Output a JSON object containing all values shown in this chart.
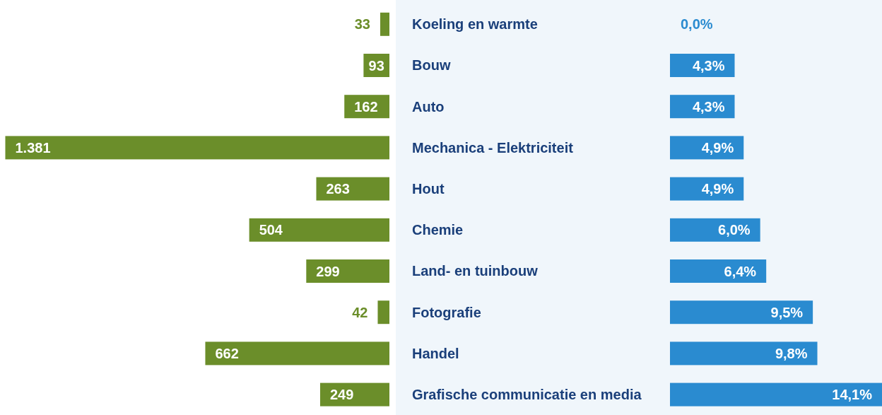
{
  "chart_data": [
    {
      "type": "bar",
      "orientation": "horizontal",
      "categories": [
        "Koeling en warmte",
        "Bouw",
        "Auto",
        "Mechanica - Elektriciteit",
        "Hout",
        "Chemie",
        "Land- en tuinbouw",
        "Fotografie",
        "Handel",
        "Grafische communicatie en media"
      ],
      "values": [
        33,
        93,
        162,
        1381,
        263,
        504,
        299,
        42,
        662,
        249
      ],
      "value_labels": [
        "33",
        "93",
        "162",
        "1.381",
        "263",
        "504",
        "299",
        "42",
        "662",
        "249"
      ],
      "color": "#6b8e2a",
      "xlim": [
        1400,
        0
      ],
      "tick_labels": "y"
    },
    {
      "type": "bar",
      "orientation": "horizontal",
      "categories": [
        null,
        null,
        null,
        null,
        null,
        null,
        null,
        null,
        null,
        null
      ],
      "values": [
        0,
        4.3,
        4.3,
        4.9,
        4.9,
        6.0,
        6.4,
        9.5,
        9.8,
        14.1
      ],
      "value_labels": [
        "0,0%",
        "4,3%",
        "4,3%",
        "4,9%",
        "4,9%",
        "6,0%",
        "6,4%",
        "9,5%",
        "9,8%",
        "14,1%"
      ],
      "color": "#2a8bd0",
      "xlim": [
        0,
        14.1
      ],
      "tick_labels": false
    }
  ]
}
